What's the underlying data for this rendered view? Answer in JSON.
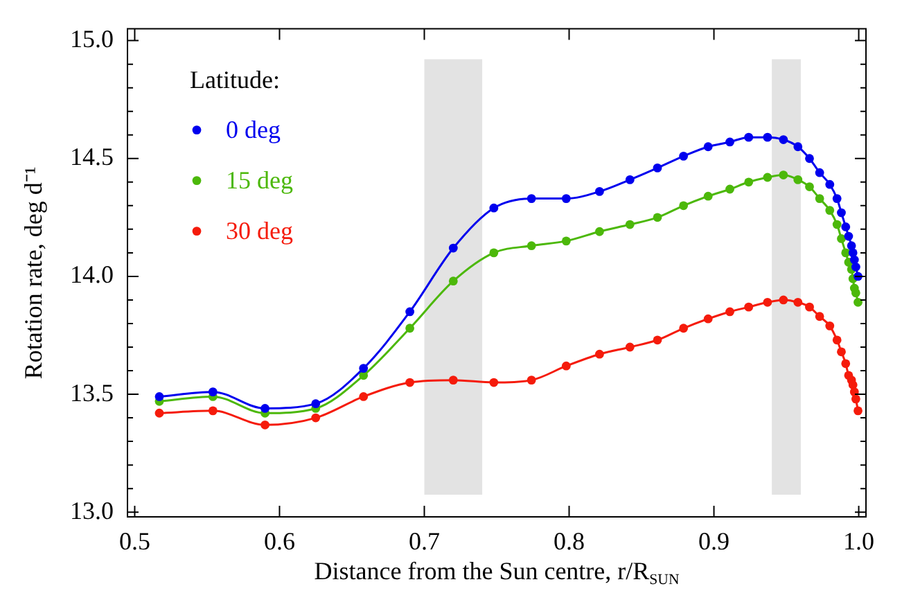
{
  "chart_data": {
    "type": "line",
    "xlabel": "Distance from the Sun centre, r/R$_{SUN}$",
    "ylabel": "Rotation rate, deg d⁻¹",
    "legend_title": "Latitude:",
    "legend": "top left",
    "marker": "circle",
    "line_style": "solid",
    "xlim": [
      0.495,
      1.005
    ],
    "ylim": [
      12.98,
      15.05
    ],
    "xticks": [
      0.5,
      0.6,
      0.7,
      0.8,
      0.9,
      {
        "value": 1,
        "label": "1.0"
      }
    ],
    "yticks": [
      {
        "value": 13,
        "label": "13.0"
      },
      {
        "value": 13.1,
        "label": null
      },
      {
        "value": 13.2,
        "label": null
      },
      {
        "value": 13.3,
        "label": null
      },
      {
        "value": 13.4,
        "label": null
      },
      13.5,
      {
        "value": 13.6,
        "label": null
      },
      {
        "value": 13.7,
        "label": null
      },
      {
        "value": 13.8,
        "label": null
      },
      {
        "value": 13.9,
        "label": null
      },
      {
        "value": 14,
        "label": "14.0"
      },
      {
        "value": 14.1,
        "label": null
      },
      {
        "value": 14.2,
        "label": null
      },
      {
        "value": 14.3,
        "label": null
      },
      {
        "value": 14.4,
        "label": null
      },
      14.5,
      {
        "value": 14.6,
        "label": null
      },
      {
        "value": 14.7,
        "label": null
      },
      {
        "value": 14.8,
        "label": null
      },
      {
        "value": 14.9,
        "label": null
      },
      {
        "value": 15,
        "label": "15.0"
      }
    ],
    "bands": [
      {
        "axis": "x",
        "from": 0.7,
        "to": 0.74,
        "color": "#e3e3e3"
      },
      {
        "axis": "x",
        "from": 0.94,
        "to": 0.96,
        "color": "#e3e3e3"
      }
    ],
    "x": [
      0.517,
      0.554,
      0.59,
      0.625,
      0.658,
      0.69,
      0.72,
      0.748,
      0.774,
      0.798,
      0.821,
      0.842,
      0.861,
      0.879,
      0.896,
      0.911,
      0.924,
      0.937,
      0.948,
      0.958,
      0.966,
      0.973,
      0.98,
      0.985,
      0.988,
      0.991,
      0.993,
      0.995,
      0.996,
      0.997,
      0.998,
      0.9995
    ],
    "series": [
      {
        "name": "0 deg",
        "color": "#0000ee",
        "values": [
          13.49,
          13.51,
          13.44,
          13.46,
          13.61,
          13.85,
          14.12,
          14.29,
          14.33,
          14.33,
          14.36,
          14.41,
          14.46,
          14.51,
          14.55,
          14.57,
          14.59,
          14.59,
          14.58,
          14.55,
          14.5,
          14.44,
          14.39,
          14.33,
          14.27,
          14.21,
          14.17,
          14.13,
          14.1,
          14.07,
          14.04,
          14.0
        ]
      },
      {
        "name": "15 deg",
        "color": "#4cb80a",
        "values": [
          13.47,
          13.49,
          13.42,
          13.44,
          13.58,
          13.78,
          13.98,
          14.1,
          14.13,
          14.15,
          14.19,
          14.22,
          14.25,
          14.3,
          14.34,
          14.37,
          14.4,
          14.42,
          14.43,
          14.41,
          14.38,
          14.33,
          14.28,
          14.22,
          14.16,
          14.1,
          14.06,
          14.03,
          13.99,
          13.95,
          13.93,
          13.89
        ]
      },
      {
        "name": "30 deg",
        "color": "#f51b0b",
        "values": [
          13.42,
          13.43,
          13.37,
          13.4,
          13.49,
          13.55,
          13.56,
          13.55,
          13.56,
          13.62,
          13.67,
          13.7,
          13.73,
          13.78,
          13.82,
          13.85,
          13.87,
          13.89,
          13.9,
          13.89,
          13.87,
          13.83,
          13.79,
          13.73,
          13.68,
          13.63,
          13.58,
          13.56,
          13.54,
          13.51,
          13.48,
          13.43
        ]
      }
    ]
  }
}
